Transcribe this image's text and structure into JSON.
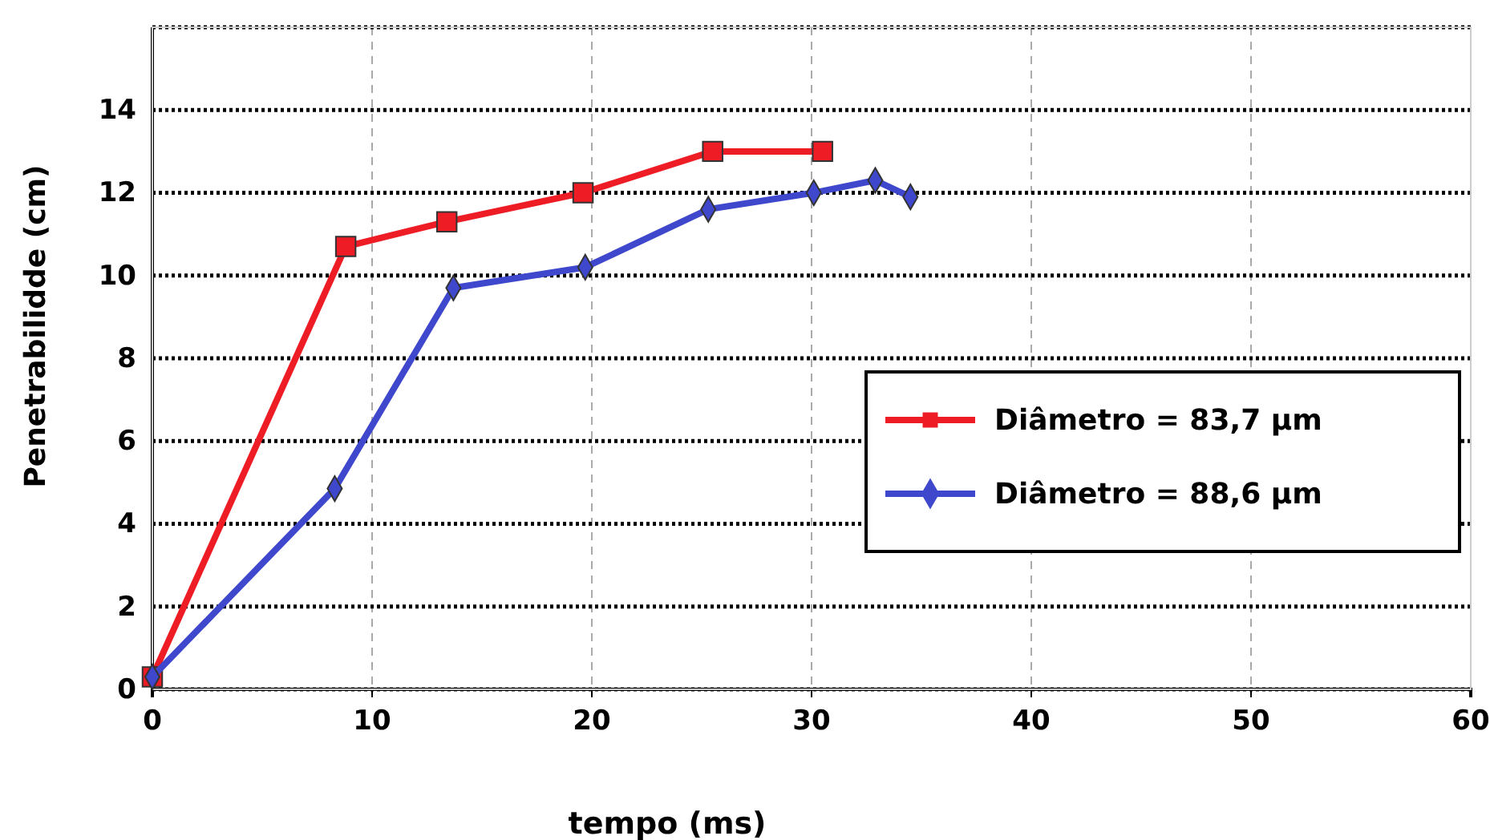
{
  "chart_data": {
    "type": "line",
    "xlabel": "tempo (ms)",
    "ylabel": "Penetrabilidde (cm)",
    "xlim": [
      0,
      60
    ],
    "xticks": [
      0,
      10,
      20,
      30,
      40,
      50,
      60
    ],
    "ylim": [
      0,
      16
    ],
    "yticks": [
      0,
      2,
      4,
      6,
      8,
      10,
      12,
      14,
      {
        "value": 16,
        "label": null
      }
    ],
    "grid": true,
    "legend": "right",
    "series": [
      {
        "name": "Diâmetro = 83,7 μm",
        "color": "#ee1c25",
        "marker": "square",
        "x": [
          0,
          8.8,
          13.4,
          19.6,
          25.5,
          30.5
        ],
        "values": [
          0.3,
          10.7,
          11.3,
          12,
          13,
          13
        ]
      },
      {
        "name": "Diâmetro = 88,6 μm",
        "color": "#3f48cc",
        "marker": "diamond",
        "x": [
          0,
          8.3,
          13.7,
          19.7,
          25.3,
          30.1,
          32.9,
          34.5
        ],
        "values": [
          0.3,
          4.85,
          9.7,
          10.2,
          11.6,
          12,
          12.3,
          11.9
        ]
      }
    ]
  }
}
